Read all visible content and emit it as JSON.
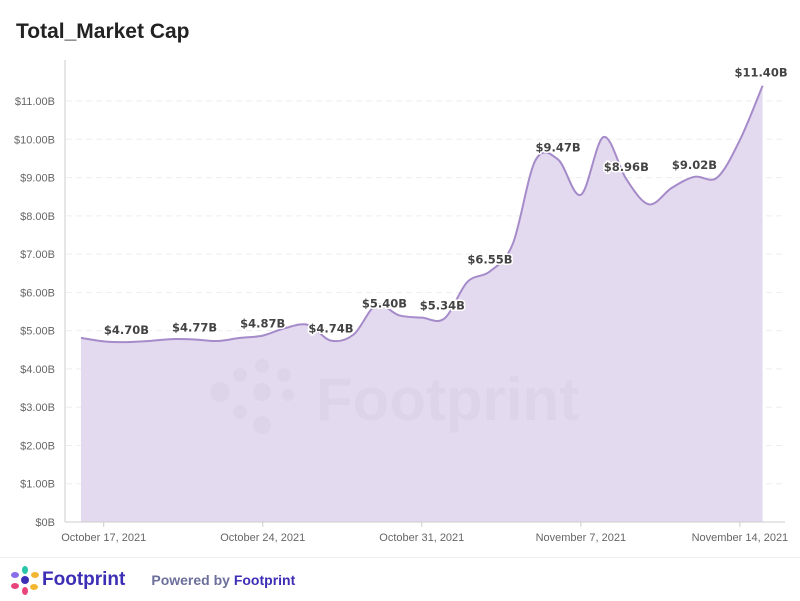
{
  "chart_data": {
    "type": "area",
    "title": "Total_Market Cap",
    "x": [
      "2021-10-16",
      "2021-10-17",
      "2021-10-18",
      "2021-10-19",
      "2021-10-20",
      "2021-10-21",
      "2021-10-22",
      "2021-10-23",
      "2021-10-24",
      "2021-10-25",
      "2021-10-26",
      "2021-10-27",
      "2021-10-28",
      "2021-10-29",
      "2021-10-30",
      "2021-10-31",
      "2021-11-01",
      "2021-11-02",
      "2021-11-03",
      "2021-11-04",
      "2021-11-05",
      "2021-11-06",
      "2021-11-07",
      "2021-11-08",
      "2021-11-09",
      "2021-11-10",
      "2021-11-11",
      "2021-11-12",
      "2021-11-13",
      "2021-11-14",
      "2021-11-15"
    ],
    "values": [
      4.81,
      4.72,
      4.7,
      4.73,
      4.78,
      4.77,
      4.73,
      4.81,
      4.87,
      5.07,
      5.15,
      4.74,
      4.9,
      5.67,
      5.4,
      5.34,
      5.32,
      6.27,
      6.55,
      7.26,
      9.45,
      9.47,
      8.55,
      10.06,
      8.96,
      8.3,
      8.73,
      9.02,
      9.0,
      9.98,
      11.4
    ],
    "data_labels": [
      {
        "index": 2,
        "text": "$4.70B"
      },
      {
        "index": 5,
        "text": "$4.77B"
      },
      {
        "index": 8,
        "text": "$4.87B"
      },
      {
        "index": 11,
        "text": "$4.74B"
      },
      {
        "index": 14,
        "text": "$5.40B"
      },
      {
        "index": 15,
        "text": "$5.34B"
      },
      {
        "index": 18,
        "text": "$6.55B"
      },
      {
        "index": 21,
        "text": "$9.47B"
      },
      {
        "index": 24,
        "text": "$8.96B"
      },
      {
        "index": 27,
        "text": "$9.02B"
      },
      {
        "index": 30,
        "text": "$11.40B"
      }
    ],
    "unit": "B",
    "ylim": [
      0,
      11.4
    ],
    "yticks": [
      "$0B",
      "$1.00B",
      "$2.00B",
      "$3.00B",
      "$4.00B",
      "$5.00B",
      "$6.00B",
      "$7.00B",
      "$8.00B",
      "$9.00B",
      "$10.00B",
      "$11.00B"
    ],
    "xticks": [
      {
        "index": 1,
        "text": "October 17, 2021"
      },
      {
        "index": 8,
        "text": "October 24, 2021"
      },
      {
        "index": 15,
        "text": "October 31, 2021"
      },
      {
        "index": 22,
        "text": "November 7, 2021"
      },
      {
        "index": 29,
        "text": "November 14, 2021"
      }
    ],
    "grid": true,
    "line_color": "#a58bc9",
    "fill_color": "#e4daf0"
  },
  "watermark": "Footprint",
  "footer": {
    "brand": "Footprint",
    "powered_prefix": "Powered by ",
    "powered_brand": "Footprint"
  }
}
